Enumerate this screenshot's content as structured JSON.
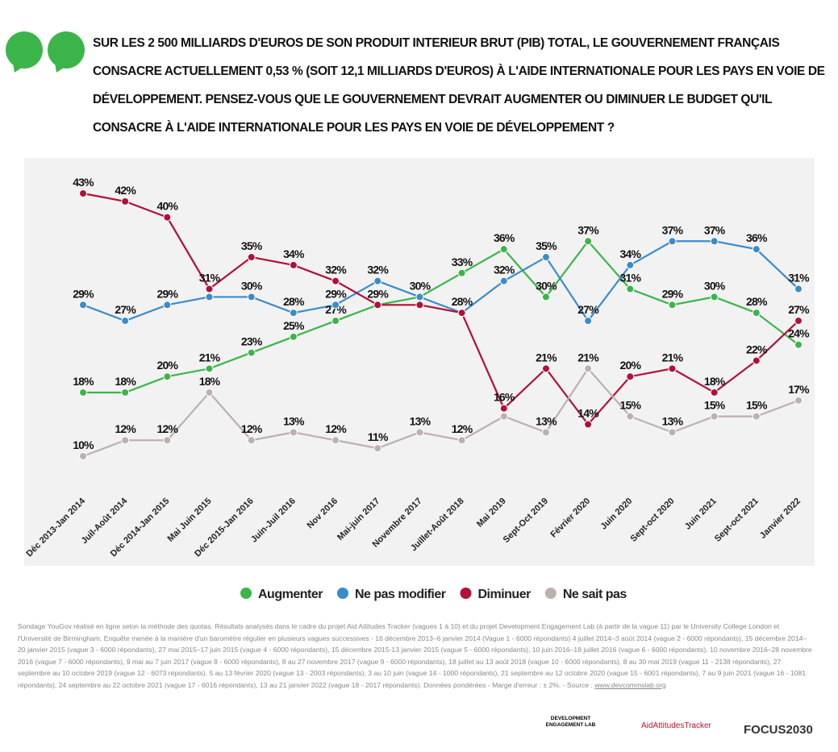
{
  "question": "SUR LES 2 500 MILLIARDS D'EUROS DE SON PRODUIT INTERIEUR BRUT (PIB) TOTAL, LE GOUVERNEMENT FRANÇAIS CONSACRE ACTUELLEMENT 0,53 % (SOIT 12,1 MILLIARDS D'EUROS) À L'AIDE INTERNATIONALE POUR LES PAYS EN VOIE DE DÉVELOPPEMENT. PENSEZ-VOUS QUE LE GOUVERNEMENT DEVRAIT AUGMENTER OU DIMINUER LE BUDGET QU'IL CONSACRE À L'AIDE INTERNATIONALE POUR LES PAYS EN VOIE DE DÉVELOPPEMENT ?",
  "chart_data": {
    "type": "line",
    "categories": [
      "Déc 2013-Jan 2014",
      "Juil-Août 2014",
      "Déc 2014-Jan 2015",
      "Mai Juin 2015",
      "Déc 2015-Jan 2016",
      "Juin-Juil 2016",
      "Nov 2016",
      "Mai-juin 2017",
      "Novembre 2017",
      "Juillet-Août 2018",
      "Mai 2019",
      "Sept-Oct 2019",
      "Février 2020",
      "Juin 2020",
      "Sept-oct 2020",
      "Juin 2021",
      "Sept-oct 2021",
      "Janvier 2022"
    ],
    "series": [
      {
        "name": "Augmenter",
        "color": "#3bb54a",
        "values": [
          18,
          18,
          20,
          21,
          23,
          25,
          27,
          29,
          30,
          33,
          36,
          30,
          37,
          31,
          29,
          30,
          28,
          24
        ],
        "value_labels": [
          "18%",
          "18%",
          "20%",
          "21%",
          "23%",
          "25%",
          "27%",
          "29%",
          null,
          "33%",
          "36%",
          "30%",
          "37%",
          "31%",
          "29%",
          "30%",
          "28%",
          "24%"
        ]
      },
      {
        "name": "Ne pas modifier",
        "color": "#3a8cc9",
        "values": [
          29,
          27,
          29,
          30,
          30,
          28,
          29,
          32,
          30,
          28,
          32,
          35,
          27,
          34,
          37,
          37,
          36,
          31
        ],
        "value_labels": [
          "29%",
          "27%",
          "29%",
          null,
          "30%",
          "28%",
          "29%",
          "32%",
          "30%",
          "28%",
          "32%",
          "35%",
          "27%",
          "34%",
          "37%",
          "37%",
          "36%",
          "31%"
        ]
      },
      {
        "name": "Diminuer",
        "color": "#b0103a",
        "values": [
          43,
          42,
          40,
          31,
          35,
          34,
          32,
          29,
          29,
          28,
          16,
          21,
          14,
          20,
          21,
          18,
          22,
          27
        ],
        "value_labels": [
          "43%",
          "42%",
          "40%",
          "31%",
          "35%",
          "34%",
          "32%",
          null,
          null,
          null,
          "16%",
          "21%",
          "14%",
          "20%",
          "21%",
          "18%",
          "22%",
          "27%"
        ]
      },
      {
        "name": "Ne sait pas",
        "color": "#bdb0b0",
        "values": [
          10,
          12,
          12,
          18,
          12,
          13,
          12,
          11,
          13,
          12,
          15,
          13,
          21,
          15,
          13,
          15,
          15,
          17
        ],
        "value_labels": [
          "10%",
          "12%",
          "12%",
          "18%",
          "12%",
          "13%",
          "12%",
          "11%",
          "13%",
          "12%",
          null,
          "13%",
          "21%",
          "15%",
          "13%",
          "15%",
          "15%",
          "17%"
        ]
      }
    ]
  },
  "footnote": "Sondage YouGov réalisé en ligne selon la méthode des quotas. Résultats analysés dans le cadre du projet Aid Attitudes Tracker (vagues 1 à 10) et du projet Development Engagement Lab (à partir de la vague 11) par le University College London et l'Université de Birmingham. Enquête menée à la manière d'un baromètre régulier en plusieurs vagues successives - 16 décembre 2013–6 janvier 2014 (Vague 1 - 6000 répondants) 4 juillet 2014–3 août 2014 (vague 2 - 6000 répondants), 15 décembre 2014–20 janvier 2015 (vague 3 - 6000 répondants), 27 mai 2015–17 juin 2015 (vague 4 - 6000 répondants), 15 décembre 2015-13 janvier 2015 (vague 5 - 6000 répondants),  10 juin 2016–18 juillet 2016 (vague 6 - 6000 répondants), 10 novembre 2016–28 novembre 2016 (vague 7 - 6000 répondants), 9 mai au 7 juin 2017 (vague 8 - 6000 répondants), 8 au 27 novembre 2017 (vague 9 - 6000 répondants), 18 juillet au 13 août 2018 (vague 10 - 6000 répondants), 8 au 30 mai 2019 (vague 11 - 2138 répondants), 27 septembre au 10 octobre 2019 (vague 12 - 6073 répondants), 5 au 13 février 2020 (vague 13 - 2003 répondants), 3 au 10 juin (vague 14 - 1000 répondants), 21 septembre au 12 octobre 2020 (vague 15 - 6001 répondants), 7 au 9 juin 2021 (vague 16 - 1081 répondants), 24 septembre au 22 octobre 2021 (vague 17 - 6016 répondants), 13 au 21 janvier 2022 (vague 18 - 2017 répondants). Données pondérées - Marge d'erreur : ± 2%. - Source :",
  "source_link": "www.devcommslab.org",
  "logos": [
    "DEVELOPMENT ENGAGEMENT LAB",
    "AidAttitudesTracker",
    "FOCUS2030"
  ]
}
